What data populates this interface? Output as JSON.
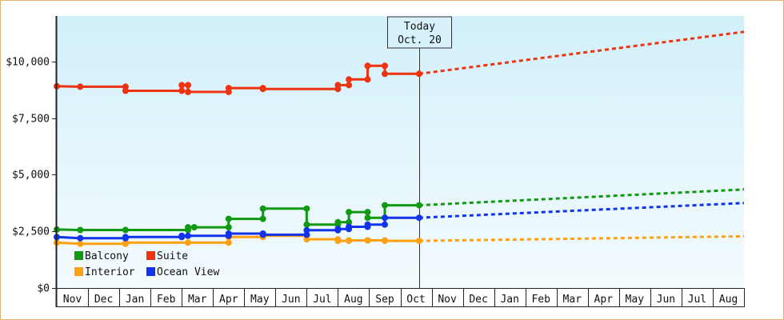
{
  "chart_data": {
    "type": "line",
    "title": "",
    "xlabel": "",
    "ylabel": "",
    "ylim": [
      0,
      12000
    ],
    "y_ticks": [
      0,
      2500,
      5000,
      7500,
      10000
    ],
    "y_tick_labels": [
      "$0",
      "$2,500",
      "$5,000",
      "$7,500",
      "$10,000"
    ],
    "x_domain": [
      0,
      22
    ],
    "month_labels": [
      "Nov",
      "Dec",
      "Jan",
      "Feb",
      "Mar",
      "Apr",
      "May",
      "Jun",
      "Jul",
      "Aug",
      "Sep",
      "Oct",
      "Nov",
      "Dec",
      "Jan",
      "Feb",
      "Mar",
      "Apr",
      "May",
      "Jun",
      "Jul",
      "Aug"
    ],
    "today": {
      "x": 11.6,
      "label_line1": "Today",
      "label_line2": "Oct. 20"
    },
    "grid": false,
    "legend": {
      "placement": "bottom-left"
    },
    "colors": {
      "plot_bg_top": "#d2f0fa",
      "plot_bg_bottom": "#f4fbfe",
      "frame": "#e0b070",
      "axis": "#222222"
    },
    "series": [
      {
        "name": "Balcony",
        "color": "#119911",
        "history": [
          [
            0,
            2580
          ],
          [
            0.75,
            2560
          ],
          [
            2.2,
            2560
          ],
          [
            4.2,
            2560
          ],
          [
            4.2,
            2680
          ],
          [
            4.4,
            2680
          ],
          [
            5.5,
            2680
          ],
          [
            5.5,
            3050
          ],
          [
            6.6,
            3050
          ],
          [
            6.6,
            3500
          ],
          [
            8.0,
            3500
          ],
          [
            8.0,
            2800
          ],
          [
            9.0,
            2800
          ],
          [
            9.0,
            2900
          ],
          [
            9.35,
            2900
          ],
          [
            9.35,
            3350
          ],
          [
            9.95,
            3350
          ],
          [
            9.95,
            3100
          ],
          [
            10.5,
            3100
          ],
          [
            10.5,
            3650
          ],
          [
            11.6,
            3650
          ]
        ],
        "forecast": [
          [
            11.6,
            3650
          ],
          [
            22,
            4350
          ]
        ]
      },
      {
        "name": "Suite",
        "color": "#ee3311",
        "history": [
          [
            0,
            8900
          ],
          [
            0.75,
            8880
          ],
          [
            2.2,
            8880
          ],
          [
            2.2,
            8700
          ],
          [
            4.0,
            8700
          ],
          [
            4.0,
            8950
          ],
          [
            4.2,
            8950
          ],
          [
            4.2,
            8650
          ],
          [
            5.5,
            8650
          ],
          [
            5.5,
            8820
          ],
          [
            6.6,
            8820
          ],
          [
            6.6,
            8780
          ],
          [
            9.0,
            8780
          ],
          [
            9.0,
            8950
          ],
          [
            9.35,
            8950
          ],
          [
            9.35,
            9200
          ],
          [
            9.95,
            9200
          ],
          [
            9.95,
            9800
          ],
          [
            10.5,
            9800
          ],
          [
            10.5,
            9450
          ],
          [
            11.6,
            9450
          ]
        ],
        "forecast": [
          [
            11.6,
            9450
          ],
          [
            22,
            11300
          ]
        ]
      },
      {
        "name": "Interior",
        "color": "#ffa010",
        "history": [
          [
            0,
            2000
          ],
          [
            0.75,
            1950
          ],
          [
            2.2,
            1950
          ],
          [
            2.2,
            2000
          ],
          [
            4.2,
            2000
          ],
          [
            5.5,
            2000
          ],
          [
            5.5,
            2250
          ],
          [
            6.6,
            2250
          ],
          [
            6.6,
            2300
          ],
          [
            8.0,
            2300
          ],
          [
            8.0,
            2150
          ],
          [
            9.0,
            2150
          ],
          [
            9.0,
            2080
          ],
          [
            9.35,
            2080
          ],
          [
            9.35,
            2100
          ],
          [
            9.95,
            2100
          ],
          [
            9.95,
            2100
          ],
          [
            10.5,
            2100
          ],
          [
            10.5,
            2080
          ],
          [
            11.6,
            2080
          ]
        ],
        "forecast": [
          [
            11.6,
            2080
          ],
          [
            22,
            2280
          ]
        ]
      },
      {
        "name": "Ocean View",
        "color": "#1133ee",
        "history": [
          [
            0,
            2250
          ],
          [
            0.75,
            2200
          ],
          [
            2.2,
            2200
          ],
          [
            2.2,
            2250
          ],
          [
            4.0,
            2250
          ],
          [
            4.0,
            2300
          ],
          [
            4.2,
            2300
          ],
          [
            5.5,
            2300
          ],
          [
            5.5,
            2400
          ],
          [
            6.6,
            2400
          ],
          [
            6.6,
            2350
          ],
          [
            8.0,
            2350
          ],
          [
            8.0,
            2550
          ],
          [
            9.0,
            2550
          ],
          [
            9.0,
            2600
          ],
          [
            9.35,
            2600
          ],
          [
            9.35,
            2700
          ],
          [
            9.95,
            2700
          ],
          [
            9.95,
            2800
          ],
          [
            10.5,
            2800
          ],
          [
            10.5,
            3100
          ],
          [
            11.6,
            3100
          ]
        ],
        "forecast": [
          [
            11.6,
            3100
          ],
          [
            22,
            3750
          ]
        ]
      }
    ]
  }
}
